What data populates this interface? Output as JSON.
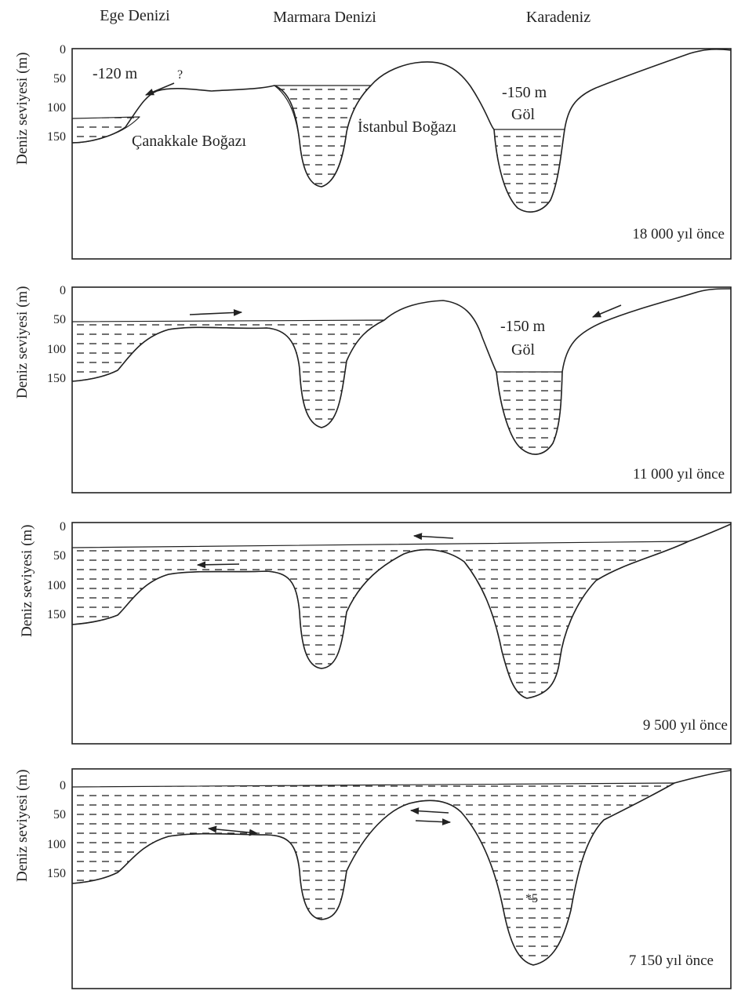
{
  "headers": {
    "aegean": "Ege Denizi",
    "marmara": "Marmara Denizi",
    "blacksea": "Karadeniz"
  },
  "y_axis": {
    "label": "Deniz seviyesi (m)",
    "ticks": [
      "0",
      "50",
      "100",
      "150"
    ]
  },
  "labels": {
    "aegean_level": "-120  m",
    "question": "?",
    "canakkale": "Çanakkale Boğazı",
    "istanbul": "İstanbul Boğazı",
    "lake_level": "-150 m",
    "lake": "Göl",
    "marker": "*5"
  },
  "panels": [
    {
      "era": "18 000 yıl önce"
    },
    {
      "era": "11 000 yıl önce"
    },
    {
      "era": "9 500 yıl önce"
    },
    {
      "era": "7 150 yıl önce"
    }
  ]
}
